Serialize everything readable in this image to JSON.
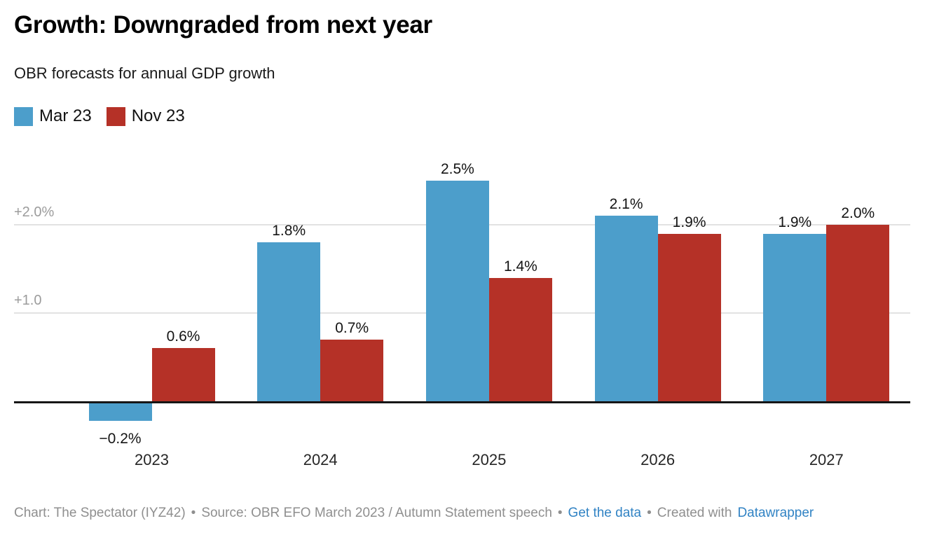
{
  "header": {
    "title": "Growth: Downgraded from next year",
    "subtitle": "OBR forecasts for annual GDP growth"
  },
  "legend": {
    "items": [
      {
        "label": "Mar 23",
        "color": "#4C9ECB"
      },
      {
        "label": "Nov 23",
        "color": "#B53127"
      }
    ]
  },
  "chart_data": {
    "type": "bar",
    "title": "Growth: Downgraded from next year",
    "subtitle": "OBR forecasts for annual GDP growth",
    "categories": [
      "2023",
      "2024",
      "2025",
      "2026",
      "2027"
    ],
    "series": [
      {
        "name": "Mar 23",
        "color": "#4C9ECB",
        "values": [
          -0.2,
          1.8,
          2.5,
          2.1,
          1.9
        ],
        "labels": [
          "−0.2%",
          "1.8%",
          "2.5%",
          "2.1%",
          "1.9%"
        ]
      },
      {
        "name": "Nov 23",
        "color": "#B53127",
        "values": [
          0.6,
          0.7,
          1.4,
          1.9,
          2.0
        ],
        "labels": [
          "0.6%",
          "0.7%",
          "1.4%",
          "1.9%",
          "2.0%"
        ]
      }
    ],
    "xlabel": "",
    "ylabel": "",
    "unit": "%",
    "ylim": [
      -0.45,
      2.85
    ],
    "baseline": 0,
    "grid": true,
    "y_ticks": [
      {
        "value": 1.0,
        "label": "+1.0"
      },
      {
        "value": 2.0,
        "label": "+2.0%"
      }
    ],
    "legend_position": "top-left"
  },
  "colors": {
    "bar_blue": "#4C9ECB",
    "bar_red": "#B53127",
    "grid": "#E2E2E2",
    "axis_text": "#9C9C9C",
    "footer_text": "#8F8F8F",
    "link": "#3183C4"
  },
  "footer": {
    "byline": "Chart: The Spectator (IYZ42)",
    "separator": "•",
    "source": "Source: OBR EFO March 2023 / Autumn Statement speech",
    "get_data_label": "Get the data",
    "created_with": "Created with",
    "datawrapper_label": "Datawrapper"
  }
}
